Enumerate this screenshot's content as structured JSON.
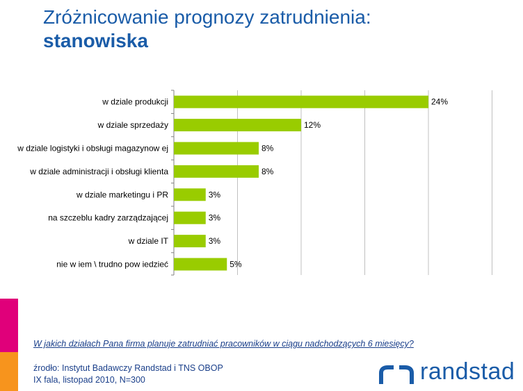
{
  "title": {
    "line1": "Zróżnicowanie prognozy zatrudnienia:",
    "line2": "stanowiska"
  },
  "chart_data": {
    "type": "bar",
    "orientation": "horizontal",
    "categories": [
      "w  dziale produkcji",
      "w  dziale sprzedaży",
      "w  dziale logistyki i obsługi magazynow ej",
      "w  dziale administracji i obsługi klienta",
      "w  dziale marketingu i PR",
      "na szczeblu kadry zarządzającej",
      "w  dziale IT",
      "nie w iem \\ trudno pow iedzieć"
    ],
    "values": [
      24,
      12,
      8,
      8,
      3,
      3,
      3,
      5
    ],
    "value_labels": [
      "24%",
      "12%",
      "8%",
      "8%",
      "3%",
      "3%",
      "3%",
      "5%"
    ],
    "xlim": [
      0,
      30
    ],
    "grid": true,
    "bar_color": "#99cc00"
  },
  "question": "W jakich działach Pana firma planuje zatrudniać pracowników w ciągu nadchodzących 6 miesięcy?",
  "source": {
    "line1": "źrodło: Instytut Badawczy Randstad i TNS OBOP",
    "line2": "IX fala, listopad 2010, N=300"
  },
  "logo": {
    "text": "randstad",
    "color": "#1a5ca8"
  },
  "colors": {
    "title": "#1a5ca8",
    "accent_pink": "#e0007a",
    "accent_orange": "#f7941d"
  }
}
